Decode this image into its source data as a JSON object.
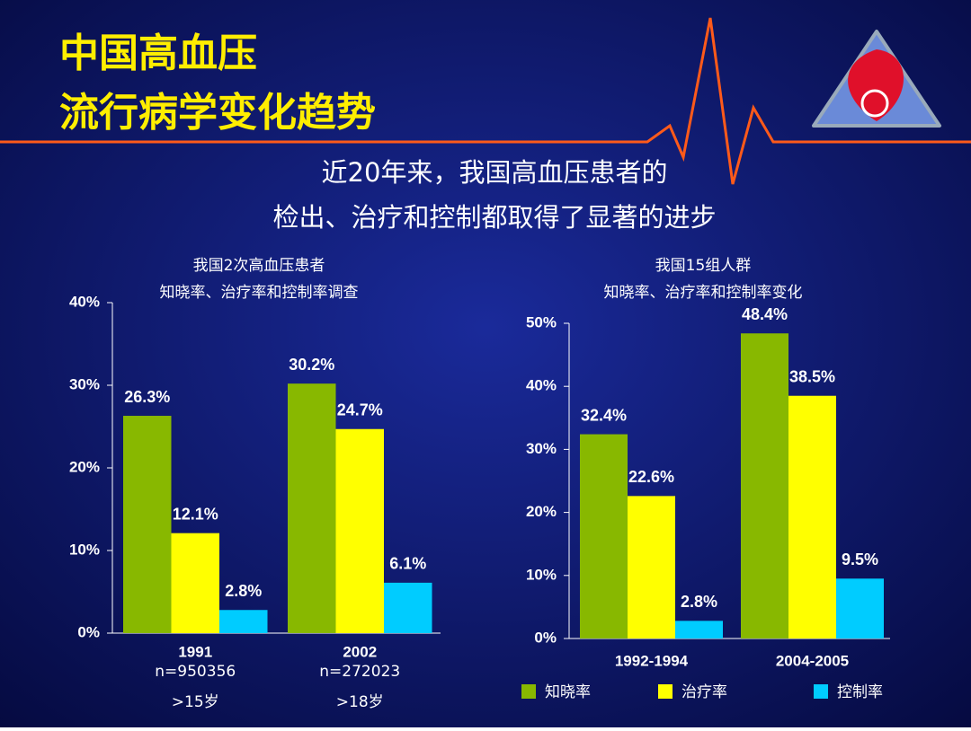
{
  "slide": {
    "title": [
      "中国高血压",
      "流行病学变化趋势"
    ],
    "subtitle": [
      "近20年来，我国高血压患者的",
      "检出、治疗和控制都取得了显著的进步"
    ]
  },
  "chart_data": [
    {
      "type": "bar",
      "title": "我国2次高血压患者",
      "subtitle": "知晓率、治疗率和控制率调查",
      "categories": [
        "1991",
        "2002"
      ],
      "category_notes": [
        [
          "n=950356",
          ">15岁"
        ],
        [
          "n=272023",
          ">18岁"
        ]
      ],
      "series": [
        {
          "color": "#88b800",
          "values": [
            26.3,
            30.2
          ],
          "value_labels": [
            "26.3%",
            "30.2%"
          ]
        },
        {
          "color": "#ffff00",
          "values": [
            12.1,
            24.7
          ],
          "value_labels": [
            "12.1%",
            "24.7%"
          ]
        },
        {
          "color": "#00ccff",
          "values": [
            2.8,
            6.1
          ],
          "value_labels": [
            "2.8%",
            "6.1%"
          ]
        }
      ],
      "ylim": [
        0,
        40
      ],
      "yticks": [
        {
          "value": 0,
          "label": "0%"
        },
        {
          "value": 10,
          "label": "10%"
        },
        {
          "value": 20,
          "label": "20%"
        },
        {
          "value": 30,
          "label": "30%"
        },
        {
          "value": 40,
          "label": "40%"
        }
      ]
    },
    {
      "type": "bar",
      "title": "我国15组人群",
      "subtitle": "知晓率、治疗率和控制率变化",
      "categories": [
        "1992-1994",
        "2004-2005"
      ],
      "series": [
        {
          "name": "知晓率",
          "color": "#88b800",
          "values": [
            32.4,
            48.4
          ],
          "value_labels": [
            "32.4%",
            "48.4%"
          ]
        },
        {
          "name": "治疗率",
          "color": "#ffff00",
          "values": [
            22.6,
            38.5
          ],
          "value_labels": [
            "22.6%",
            "38.5%"
          ]
        },
        {
          "name": "控制率",
          "color": "#00ccff",
          "values": [
            2.8,
            9.5
          ],
          "value_labels": [
            "2.8%",
            "9.5%"
          ]
        }
      ],
      "ylim": [
        0,
        50
      ],
      "yticks": [
        {
          "value": 0,
          "label": "0%"
        },
        {
          "value": 10,
          "label": "10%"
        },
        {
          "value": 20,
          "label": "20%"
        },
        {
          "value": 30,
          "label": "30%"
        },
        {
          "value": 40,
          "label": "40%"
        },
        {
          "value": 50,
          "label": "50%"
        }
      ],
      "legend": "bottom"
    }
  ]
}
